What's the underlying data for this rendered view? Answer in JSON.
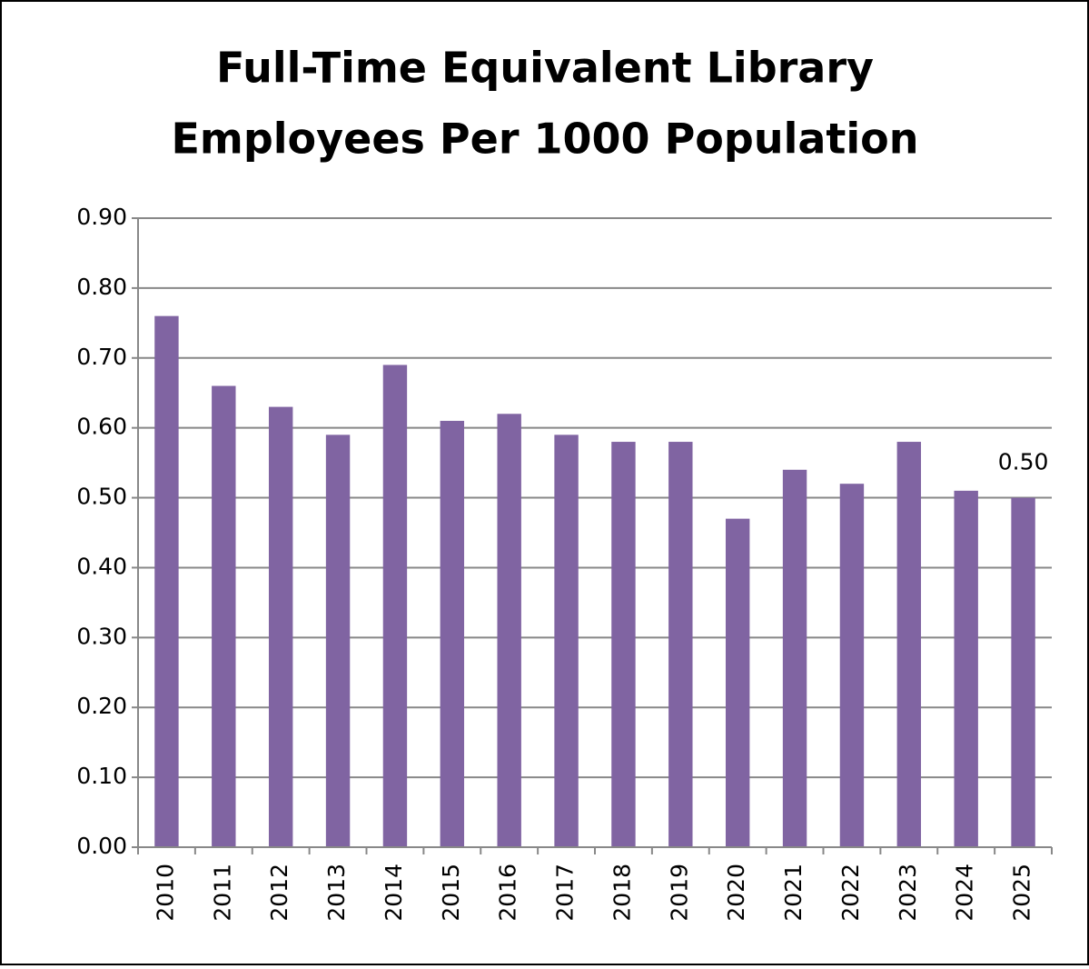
{
  "chart_data": {
    "type": "bar",
    "title": [
      "Full-Time Equivalent Library",
      "Employees Per 1000 Population"
    ],
    "categories": [
      "2010",
      "2011",
      "2012",
      "2013",
      "2014",
      "2015",
      "2016",
      "2017",
      "2018",
      "2019",
      "2020",
      "2021",
      "2022",
      "2023",
      "2024",
      "2025"
    ],
    "values": [
      0.76,
      0.66,
      0.63,
      0.59,
      0.69,
      0.61,
      0.62,
      0.59,
      0.58,
      0.58,
      0.47,
      0.54,
      0.52,
      0.58,
      0.51,
      0.5
    ],
    "value_labels": [
      null,
      null,
      null,
      null,
      null,
      null,
      null,
      null,
      null,
      null,
      null,
      null,
      null,
      null,
      null,
      "0.50"
    ],
    "color": "#8064a2",
    "ylim": [
      0,
      0.9
    ],
    "yticks": [
      {
        "value": 0,
        "label": "0.00"
      },
      {
        "value": 0.1,
        "label": "0.10"
      },
      {
        "value": 0.2,
        "label": "0.20"
      },
      {
        "value": 0.3,
        "label": "0.30"
      },
      {
        "value": 0.4,
        "label": "0.40"
      },
      {
        "value": 0.5,
        "label": "0.50"
      },
      {
        "value": 0.6,
        "label": "0.60"
      },
      {
        "value": 0.7,
        "label": "0.70"
      },
      {
        "value": 0.8,
        "label": "0.80"
      },
      {
        "value": 0.9,
        "label": "0.90"
      }
    ],
    "grid": true
  }
}
